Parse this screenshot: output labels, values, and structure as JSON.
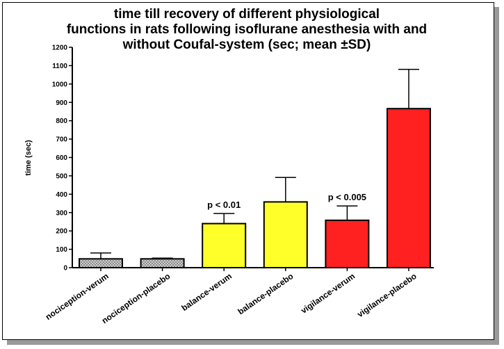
{
  "chart_data": {
    "type": "bar",
    "title_lines": [
      "time till recovery of different physiological",
      "functions in rats following isoflurane anesthesia with and",
      "without Coufal-system (sec; mean ±SD)"
    ],
    "ylabel": "time (sec)",
    "xlabel": "",
    "ylim": [
      0,
      1200
    ],
    "yticks": [
      0,
      100,
      200,
      300,
      400,
      500,
      600,
      700,
      800,
      900,
      1000,
      1100,
      1200
    ],
    "categories": [
      "nociception-verum",
      "nociception-placebo",
      "balance-verum",
      "balance-placebo",
      "vigilance-verum",
      "vigilance-placebo"
    ],
    "values": [
      48,
      48,
      240,
      358,
      258,
      866
    ],
    "sd": [
      32,
      4,
      55,
      133,
      78,
      214
    ],
    "bar_colors": [
      "#b8b8b8",
      "#b8b8b8",
      "#ffff2a",
      "#ffff2a",
      "#ff2020",
      "#ff2020"
    ],
    "bar_patterns": [
      "checker",
      "checker",
      "solid",
      "solid",
      "solid",
      "solid"
    ],
    "annotations": [
      {
        "category_index": 2,
        "text": "p < 0.01"
      },
      {
        "category_index": 4,
        "text": "p < 0.005"
      }
    ],
    "grid": false,
    "legend": "none"
  }
}
